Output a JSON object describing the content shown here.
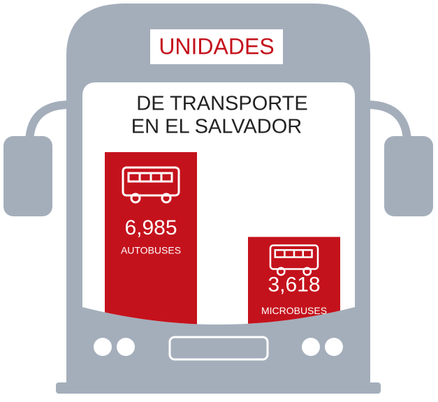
{
  "chart_data": {
    "type": "bar",
    "title": "UNIDADES",
    "subtitle": [
      "DE TRANSPORTE",
      "EN EL SALVADOR"
    ],
    "categories": [
      "AUTOBUSES",
      "MICROBUSES"
    ],
    "values": [
      6985,
      3618
    ],
    "value_labels": [
      "6,985",
      "3,618"
    ],
    "color": "#c4121c"
  }
}
